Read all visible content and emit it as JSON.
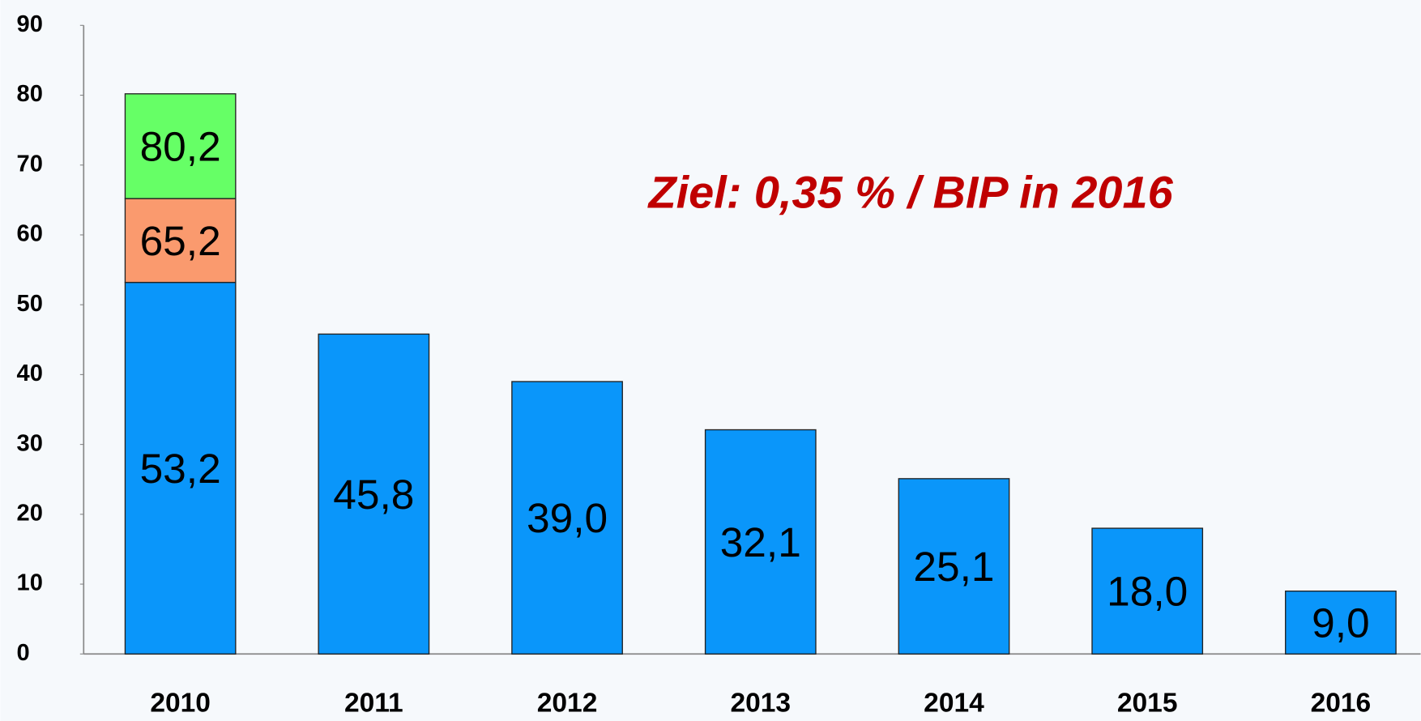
{
  "chart_data": {
    "type": "stacked_bar",
    "categories": [
      "2010",
      "2011",
      "2012",
      "2013",
      "2014",
      "2015",
      "2016"
    ],
    "series": [
      {
        "color": "#0a96fa",
        "values": [
          53.2,
          45.8,
          39.0,
          32.1,
          25.1,
          18.0,
          9.0
        ],
        "value_labels": [
          "53,2",
          "45,8",
          "39,0",
          "32,1",
          "25,1",
          "18,0",
          "9,0"
        ]
      },
      {
        "color": "#fa9a6e",
        "values": [
          12.0,
          null,
          null,
          null,
          null,
          null,
          null
        ]
      },
      {
        "color": "#66ff66",
        "values": [
          15.0,
          null,
          null,
          null,
          null,
          null,
          null
        ]
      }
    ],
    "stack_labels": [
      {
        "text": "65,2",
        "value": 65.2
      },
      {
        "text": "80,2",
        "value": 80.2
      }
    ],
    "annotation": "Ziel: 0,35 % / BIP in 2016",
    "ylim": [
      0,
      90
    ],
    "yticks": [
      0,
      10,
      20,
      30,
      40,
      50,
      60,
      70,
      80,
      90
    ],
    "grid": false
  }
}
